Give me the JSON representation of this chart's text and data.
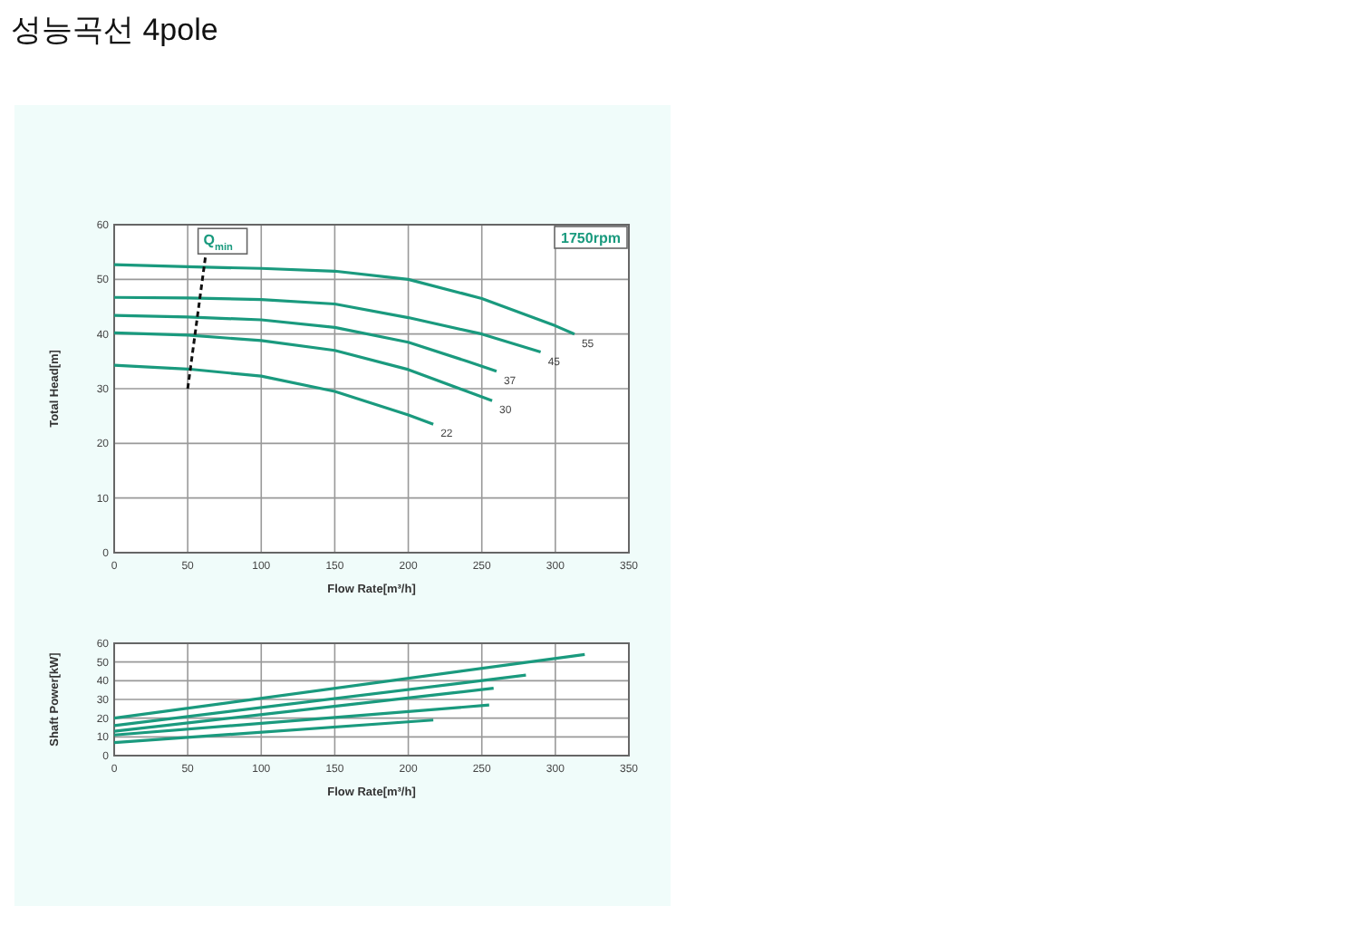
{
  "chart_data": [
    {
      "type": "line",
      "title": "성능곡선 4pole",
      "xlabel": "Flow Rate[m³/h]",
      "ylabel": "Total Head[m]",
      "xlim": [
        0,
        350
      ],
      "xticks": [
        0,
        50,
        100,
        150,
        200,
        250,
        300,
        350
      ],
      "ylim": [
        0,
        60
      ],
      "yticks": [
        0,
        10,
        20,
        30,
        40,
        50,
        60
      ],
      "grid": true,
      "annotations": [
        "1750rpm"
      ],
      "series": [
        {
          "name": "55",
          "color": "#1a9a7e",
          "x": [
            0,
            50,
            100,
            150,
            200,
            250,
            300,
            313
          ],
          "values": [
            52.7,
            52.3,
            52,
            51.5,
            50,
            46.5,
            41.5,
            40
          ]
        },
        {
          "name": "45",
          "color": "#1a9a7e",
          "x": [
            0,
            50,
            100,
            150,
            200,
            250,
            290
          ],
          "values": [
            46.7,
            46.6,
            46.3,
            45.5,
            43,
            40,
            36.7
          ]
        },
        {
          "name": "37",
          "color": "#1a9a7e",
          "x": [
            0,
            50,
            100,
            150,
            200,
            240,
            260
          ],
          "values": [
            43.4,
            43.1,
            42.6,
            41.2,
            38.5,
            35,
            33.2
          ]
        },
        {
          "name": "30",
          "color": "#1a9a7e",
          "x": [
            0,
            50,
            100,
            150,
            200,
            240,
            257
          ],
          "values": [
            40.2,
            39.8,
            38.8,
            37,
            33.5,
            29.5,
            27.8
          ]
        },
        {
          "name": "22",
          "color": "#1a9a7e",
          "x": [
            0,
            50,
            100,
            150,
            200,
            217
          ],
          "values": [
            34.3,
            33.6,
            32.3,
            29.5,
            25.2,
            23.5
          ]
        },
        {
          "name": "Q$_{min}$",
          "color": "#111111",
          "line_style": "dashed",
          "x": [
            50,
            62
          ],
          "values": [
            30,
            54
          ]
        }
      ]
    },
    {
      "type": "line",
      "xlabel": "Flow Rate[m³/h]",
      "ylabel": "Shaft Power[kW]",
      "xlim": [
        0,
        350
      ],
      "xticks": [
        0,
        50,
        100,
        150,
        200,
        250,
        300,
        350
      ],
      "ylim": [
        0,
        60
      ],
      "yticks": [
        0,
        10,
        20,
        30,
        40,
        50,
        60
      ],
      "grid": true,
      "series": [
        {
          "color": "#1a9a7e",
          "x": [
            0,
            320
          ],
          "values": [
            20,
            54
          ]
        },
        {
          "color": "#1a9a7e",
          "x": [
            0,
            280
          ],
          "values": [
            16,
            43
          ]
        },
        {
          "color": "#1a9a7e",
          "x": [
            0,
            258
          ],
          "values": [
            13,
            36
          ]
        },
        {
          "color": "#1a9a7e",
          "x": [
            0,
            255
          ],
          "values": [
            11,
            27
          ]
        },
        {
          "color": "#1a9a7e",
          "x": [
            0,
            217
          ],
          "values": [
            7,
            19
          ]
        }
      ]
    }
  ]
}
